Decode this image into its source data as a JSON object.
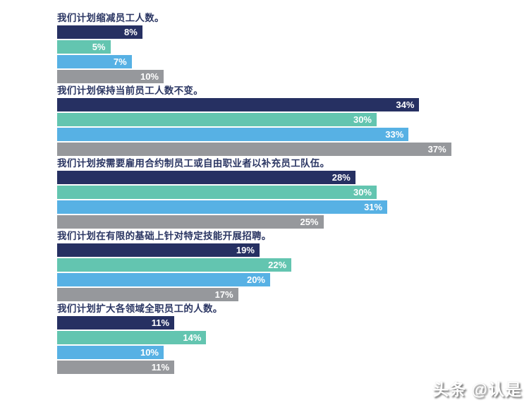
{
  "page": {
    "background": "#ffffff"
  },
  "watermark": {
    "text": "头条 @认是"
  },
  "chart_data": {
    "type": "bar",
    "orientation": "horizontal",
    "title": "",
    "xlabel": "",
    "ylabel": "",
    "xlim": [
      0,
      40
    ],
    "grid": false,
    "legend": "none",
    "value_unit": "%",
    "series_colors": [
      "#263062",
      "#63c5b0",
      "#57b1e4",
      "#96989c"
    ],
    "label_color": "#2b3663",
    "groups": [
      {
        "label": "我们计划缩减员工人数。",
        "values": [
          8,
          5,
          7,
          10
        ],
        "value_labels": [
          "8%",
          "5%",
          "7%",
          "10%"
        ]
      },
      {
        "label": "我们计划保持当前员工人数不变。",
        "values": [
          34,
          30,
          33,
          37
        ],
        "value_labels": [
          "34%",
          "30%",
          "33%",
          "37%"
        ]
      },
      {
        "label": "我们计划按需要雇用合约制员工或自由职业者以补充员工队伍。",
        "values": [
          28,
          30,
          31,
          25
        ],
        "value_labels": [
          "28%",
          "30%",
          "31%",
          "25%"
        ]
      },
      {
        "label": "我们计划在有限的基础上针对特定技能开展招聘。",
        "values": [
          19,
          22,
          20,
          17
        ],
        "value_labels": [
          "19%",
          "22%",
          "20%",
          "17%"
        ]
      },
      {
        "label": "我们计划扩大各领域全职员工的人数。",
        "values": [
          11,
          14,
          10,
          11
        ],
        "value_labels": [
          "11%",
          "14%",
          "10%",
          "11%"
        ]
      }
    ]
  }
}
